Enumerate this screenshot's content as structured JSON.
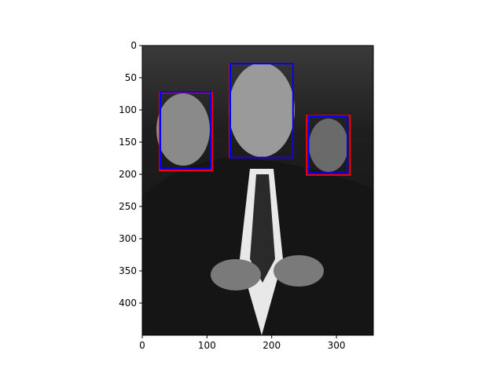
{
  "chart_data": {
    "type": "image",
    "xlim": [
      0,
      357
    ],
    "ylim": [
      450,
      0
    ],
    "xticks": [
      0,
      100,
      200,
      300
    ],
    "yticks": [
      0,
      50,
      100,
      150,
      200,
      250,
      300,
      350,
      400
    ],
    "series": [
      {
        "color": "#ff0000",
        "boxes": [
          [
            27,
            73,
            81,
            121
          ],
          [
            135,
            28,
            98,
            146
          ],
          [
            254,
            109,
            67,
            92
          ]
        ]
      },
      {
        "color": "#0000ff",
        "boxes": [
          [
            28,
            72,
            78,
            119
          ],
          [
            136,
            28,
            97,
            146
          ],
          [
            257,
            110,
            60,
            88
          ]
        ]
      }
    ]
  }
}
